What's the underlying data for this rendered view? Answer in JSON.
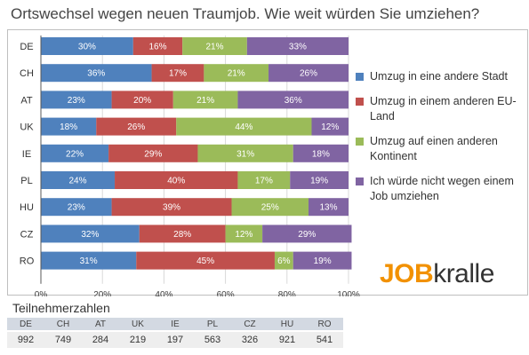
{
  "colors": {
    "stadt": "#4f81bd",
    "eu": "#c0504d",
    "kontinent": "#9bbb59",
    "nicht": "#8064a2",
    "grid": "#d9d9d9",
    "axis": "#595959"
  },
  "chart_data": {
    "type": "bar",
    "orientation": "horizontal",
    "stacked": true,
    "title": "Ortswechsel wegen neuen Traumjob. Wie weit würden Sie umziehen?",
    "categories": [
      "DE",
      "CH",
      "AT",
      "UK",
      "IE",
      "PL",
      "HU",
      "CZ",
      "RO"
    ],
    "series": [
      {
        "name": "Umzug in eine andere Stadt",
        "color": "#4f81bd",
        "values": [
          30,
          36,
          23,
          18,
          22,
          24,
          23,
          32,
          31
        ]
      },
      {
        "name": "Umzug in einem anderen EU-Land",
        "color": "#c0504d",
        "values": [
          16,
          17,
          20,
          26,
          29,
          40,
          39,
          28,
          45
        ]
      },
      {
        "name": "Umzug auf einen anderen Kontinent",
        "color": "#9bbb59",
        "values": [
          21,
          21,
          21,
          44,
          31,
          17,
          25,
          12,
          6
        ]
      },
      {
        "name": "Ich würde nicht wegen einem Job umziehen",
        "color": "#8064a2",
        "values": [
          33,
          26,
          36,
          12,
          18,
          19,
          13,
          29,
          19
        ]
      }
    ],
    "x_ticks": [
      "0%",
      "20%",
      "40%",
      "60%",
      "80%",
      "100%"
    ],
    "xlim": [
      0,
      100
    ],
    "value_suffix": "%",
    "legend_position": "right",
    "grid": true
  },
  "logo": {
    "part1": "JOB",
    "part2": "kralle"
  },
  "participants": {
    "title": "Teilnehmerzahlen",
    "countries": [
      "DE",
      "CH",
      "AT",
      "UK",
      "IE",
      "PL",
      "CZ",
      "HU",
      "RO"
    ],
    "values": [
      "992",
      "749",
      "284",
      "219",
      "197",
      "563",
      "326",
      "921",
      "541"
    ]
  }
}
